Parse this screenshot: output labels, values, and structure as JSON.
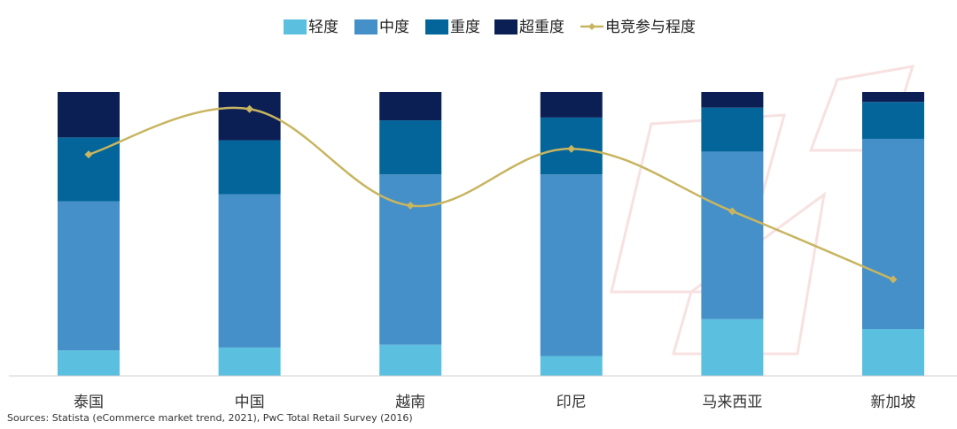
{
  "chart_data": {
    "type": "stacked-bar-with-line",
    "title": "",
    "xlabel": "",
    "ylabel": "",
    "ylim": [
      0,
      100
    ],
    "grid": false,
    "legend_position": "top-center",
    "categories": [
      "泰国",
      "中国",
      "越南",
      "印尼",
      "马来西亚",
      "新加坡"
    ],
    "series": [
      {
        "name": "轻度",
        "color": "#5bc0e0",
        "values": [
          9,
          10,
          11,
          7,
          20,
          16.5
        ]
      },
      {
        "name": "中度",
        "color": "#4590c8",
        "values": [
          52.5,
          54,
          60,
          64,
          59,
          67
        ]
      },
      {
        "name": "重度",
        "color": "#036599",
        "values": [
          22.5,
          19,
          19,
          20,
          15.5,
          13
        ]
      },
      {
        "name": "超重度",
        "color": "#0b1f55",
        "values": [
          16,
          17,
          10,
          9,
          5.5,
          3.5
        ]
      }
    ],
    "line_series": {
      "name": "电竞参与程度",
      "color": "#c8b560",
      "values": [
        78,
        94,
        60,
        80,
        58,
        34
      ]
    },
    "source": "Sources: Statista (eCommerce market trend, 2021), PwC Total Retail Survey (2016)"
  }
}
